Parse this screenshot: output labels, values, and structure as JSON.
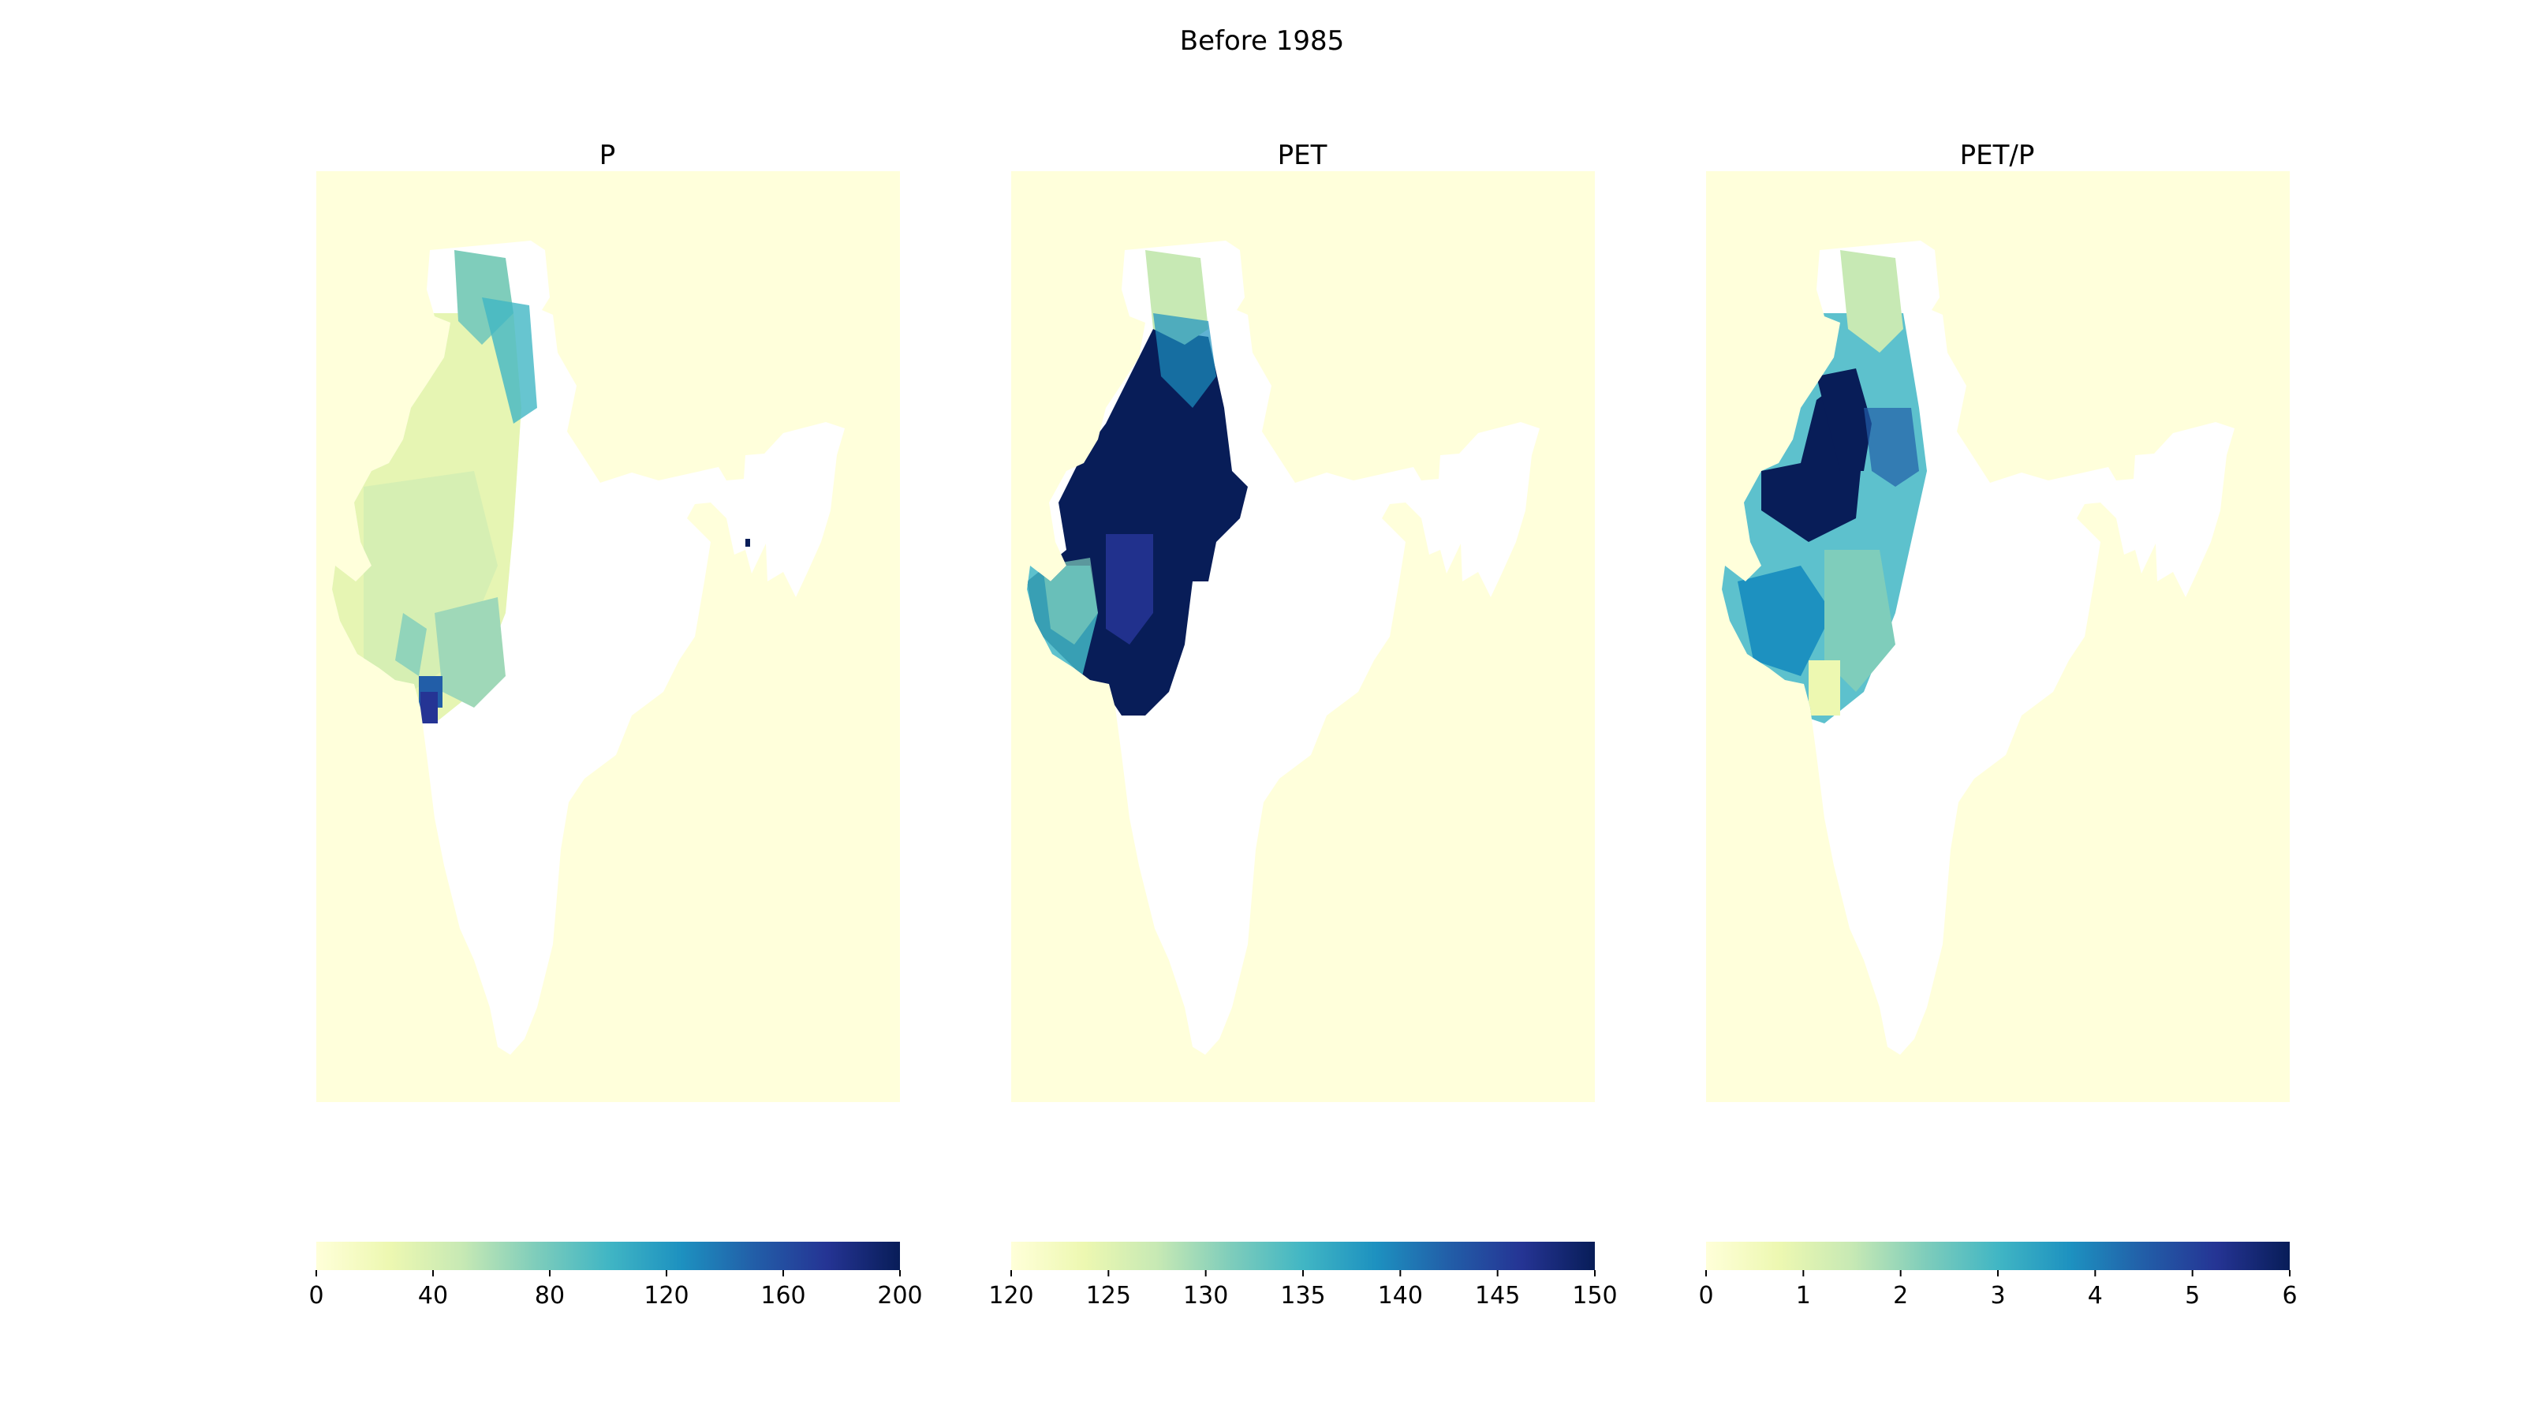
{
  "figure": {
    "title": "Before 1985"
  },
  "colors": {
    "map_background": "#ffffdb",
    "land_mask": "#ffffff",
    "colormap": [
      "#ffffd9",
      "#edf8b1",
      "#c7e9b4",
      "#7fcdbb",
      "#41b6c4",
      "#1d91c0",
      "#225ea8",
      "#253494",
      "#081d58"
    ]
  },
  "panels": [
    {
      "title": "P",
      "colorbar": {
        "min": 0,
        "max": 200,
        "ticks": [
          "0",
          "40",
          "80",
          "120",
          "160",
          "200"
        ]
      }
    },
    {
      "title": "PET",
      "colorbar": {
        "min": 120,
        "max": 150,
        "ticks": [
          "120",
          "125",
          "130",
          "135",
          "140",
          "145",
          "150"
        ]
      }
    },
    {
      "title": "PET/P",
      "colorbar": {
        "min": 0,
        "max": 6,
        "ticks": [
          "0",
          "1",
          "2",
          "3",
          "4",
          "5",
          "6"
        ]
      }
    }
  ]
}
